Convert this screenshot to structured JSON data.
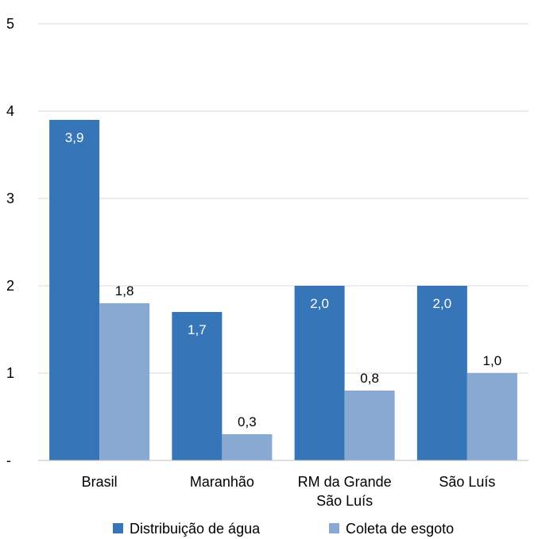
{
  "chart_data": {
    "type": "bar",
    "categories": [
      [
        "Brasil"
      ],
      [
        "Maranhão"
      ],
      [
        "RM da Grande",
        "São Luís"
      ],
      [
        "São Luís"
      ]
    ],
    "series": [
      {
        "name": "Distribuição de água",
        "values": [
          3.9,
          1.7,
          2.0,
          2.0
        ],
        "labels": [
          "3,9",
          "1,7",
          "2,0",
          "2,0"
        ],
        "color": "#3575b8",
        "label_color": "#ffffff",
        "label_position": "inside"
      },
      {
        "name": "Coleta de esgoto",
        "values": [
          1.8,
          0.3,
          0.8,
          1.0
        ],
        "labels": [
          "1,8",
          "0,3",
          "0,8",
          "1,0"
        ],
        "color": "#87a9d2",
        "label_color": "#000000",
        "label_position": "above"
      }
    ],
    "y_ticks": [
      {
        "value": 0,
        "label": "-"
      },
      {
        "value": 1,
        "label": "1"
      },
      {
        "value": 2,
        "label": "2"
      },
      {
        "value": 3,
        "label": "3"
      },
      {
        "value": 4,
        "label": "4"
      },
      {
        "value": 5,
        "label": "5"
      }
    ],
    "ylim": [
      0,
      5
    ],
    "grid": true,
    "gridline_color": "#d9d9d9",
    "axis_color": "#bfbfbf",
    "legend_position": "bottom"
  }
}
